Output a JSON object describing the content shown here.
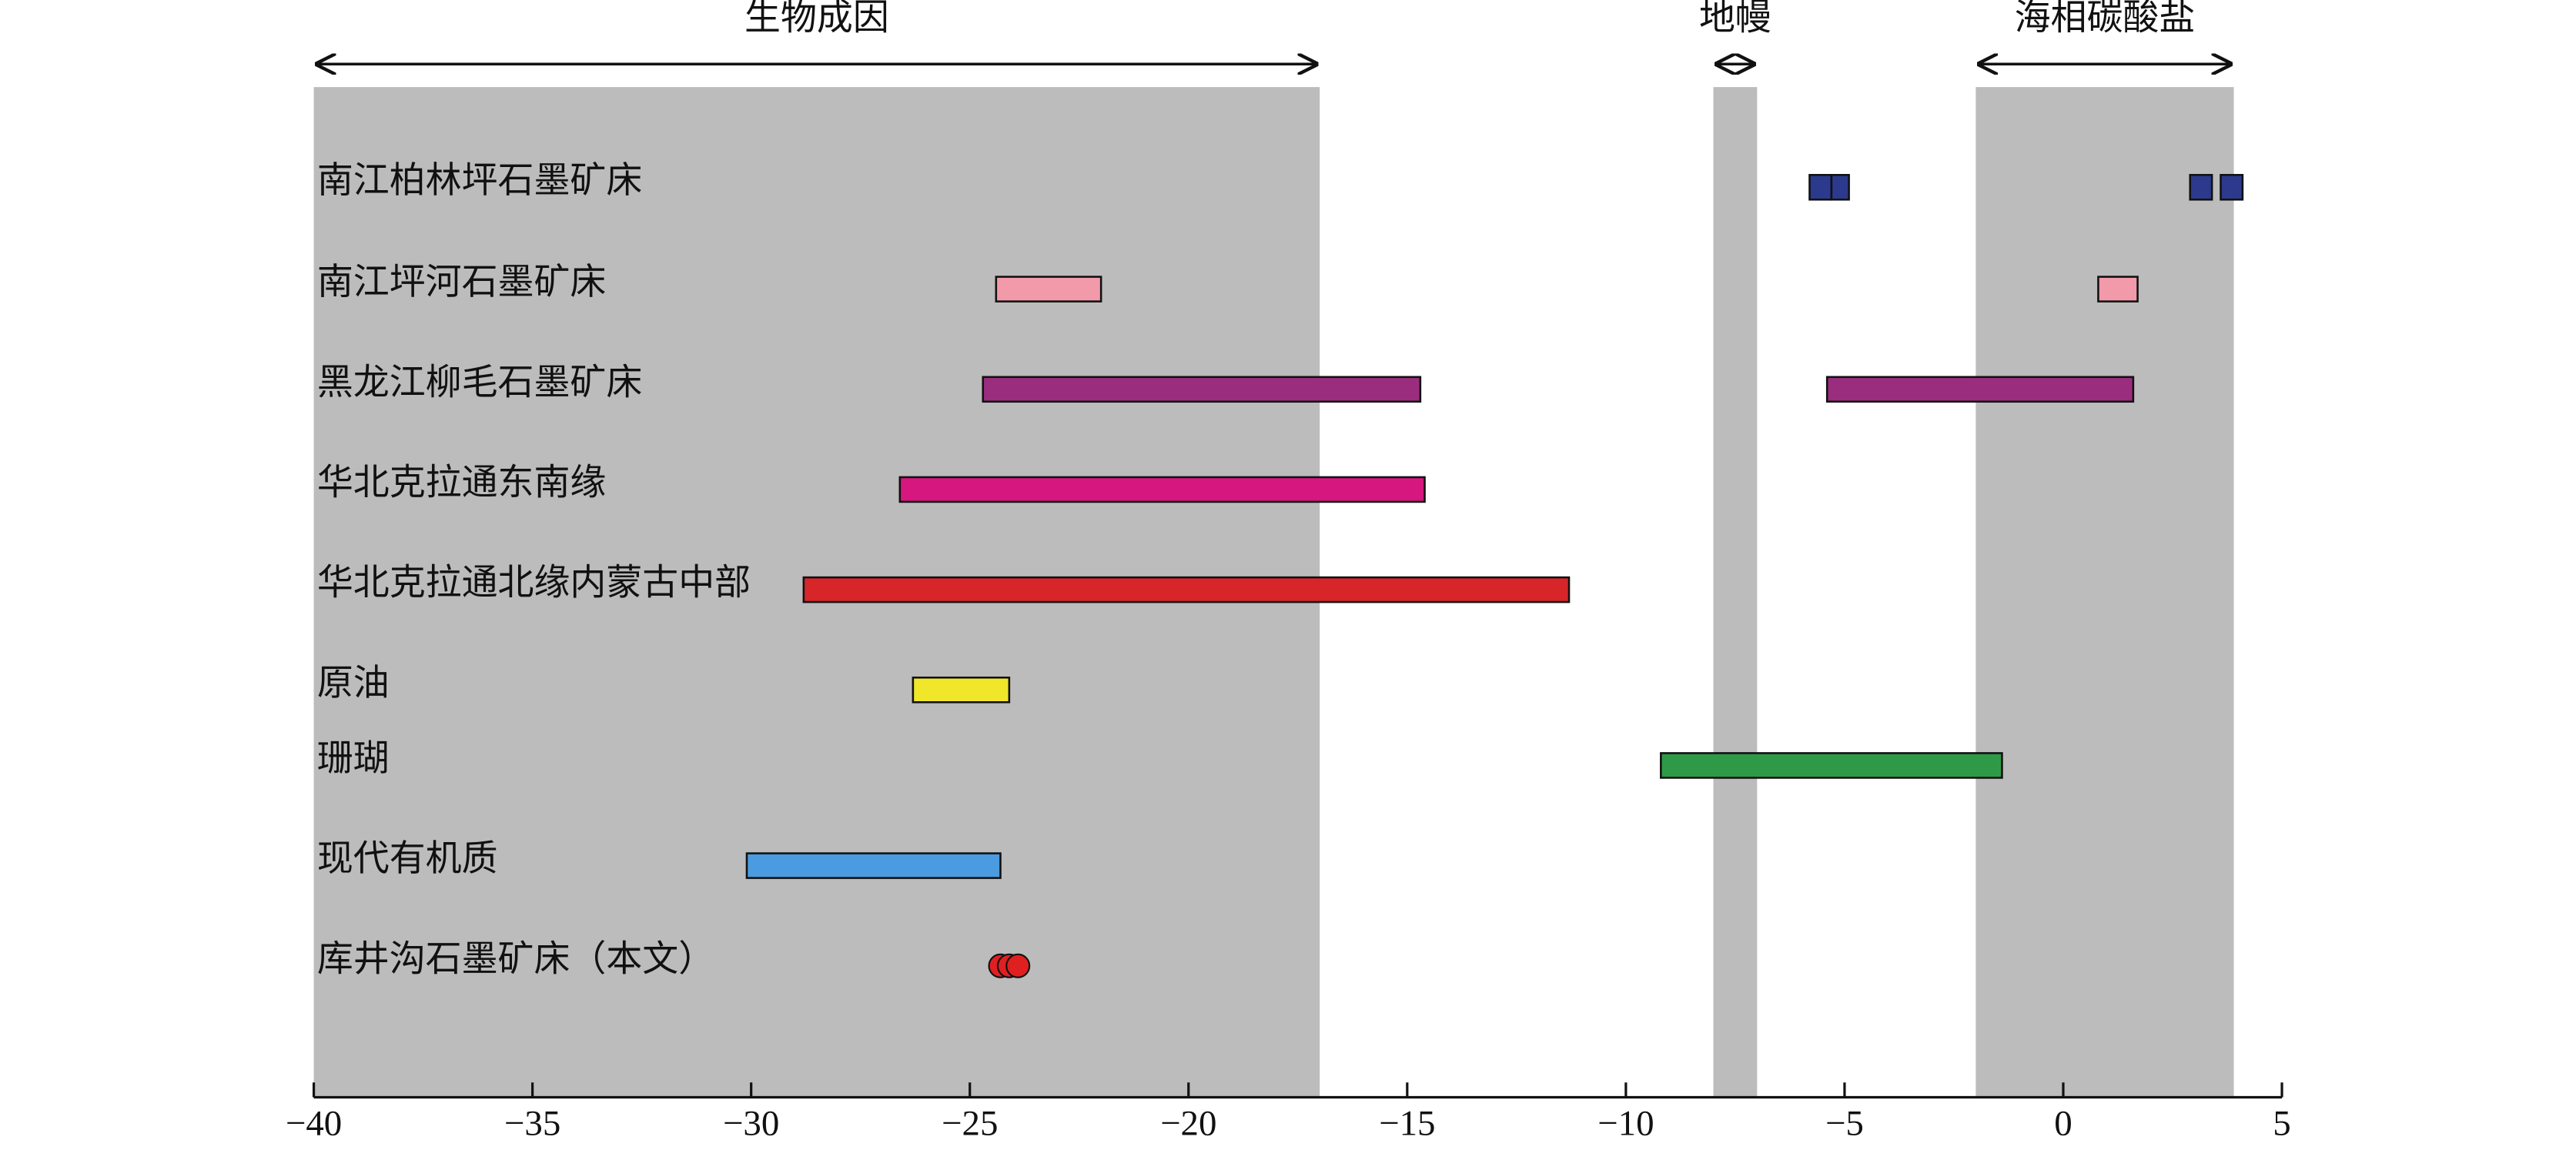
{
  "chart_data": {
    "type": "range",
    "xlim": [
      -40,
      5
    ],
    "xticks": [
      {
        "value": -40,
        "label": "−40"
      },
      {
        "value": -35,
        "label": "−35"
      },
      {
        "value": -30,
        "label": "−30"
      },
      {
        "value": -25,
        "label": "−25"
      },
      {
        "value": -20,
        "label": "−20"
      },
      {
        "value": -15,
        "label": "−15"
      },
      {
        "value": -10,
        "label": "−10"
      },
      {
        "value": -5,
        "label": "−5"
      },
      0,
      5
    ],
    "regions": [
      {
        "label": "生物成因",
        "range": [
          -40,
          -17
        ]
      },
      {
        "label": "地幔",
        "range": [
          -8,
          -7
        ]
      },
      {
        "label": "海相碳酸盐",
        "range": [
          -2,
          3.9
        ]
      }
    ],
    "rows": [
      {
        "name": "南江柏林坪石墨矿床",
        "color": "#2b3a8c",
        "ranges": [
          [
            -5.8,
            -5.3
          ],
          [
            -5.3,
            -4.9
          ],
          [
            2.9,
            3.4
          ],
          [
            3.6,
            4.1
          ]
        ]
      },
      {
        "name": "南江坪河石墨矿床",
        "color": "#f29aaa",
        "ranges": [
          [
            -24.4,
            -22.0
          ],
          [
            0.8,
            1.7
          ]
        ]
      },
      {
        "name": "黑龙江柳毛石墨矿床",
        "color": "#9b2d7e",
        "ranges": [
          [
            -24.7,
            -14.7
          ],
          [
            -5.4,
            1.6
          ]
        ]
      },
      {
        "name": "华北克拉通东南缘",
        "color": "#d6177f",
        "ranges": [
          [
            -26.6,
            -14.6
          ]
        ]
      },
      {
        "name": "华北克拉通北缘内蒙古中部",
        "color": "#d7252a",
        "ranges": [
          [
            -28.8,
            -11.3
          ]
        ]
      },
      {
        "name": "原油",
        "color": "#f0e62a",
        "ranges": [
          [
            -26.3,
            -24.1
          ]
        ]
      },
      {
        "name": "珊瑚",
        "color": "#2e9a47",
        "ranges": [
          [
            -9.2,
            -1.4
          ]
        ]
      },
      {
        "name": "现代有机质",
        "color": "#4a9be0",
        "ranges": [
          [
            -30.1,
            -24.3
          ]
        ]
      },
      {
        "name": "库井沟石墨矿床（本文）",
        "color": "#e02020",
        "points": [
          -24.3,
          -24.1,
          -23.9
        ]
      }
    ]
  }
}
